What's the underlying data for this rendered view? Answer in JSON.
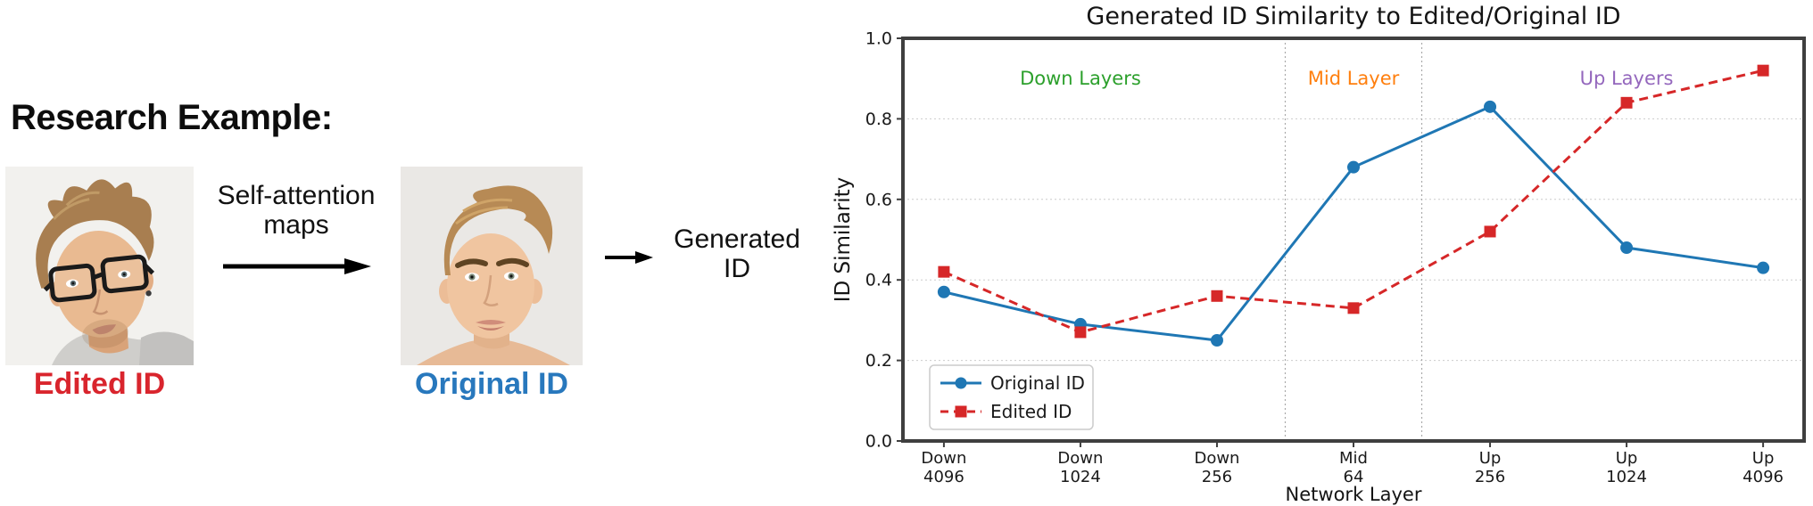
{
  "left_panel": {
    "heading": "Research Example:",
    "images": [
      {
        "label": "Edited ID",
        "label_color": "#d9252d",
        "photo": "man-with-glasses-portrait"
      },
      {
        "label": "Original ID",
        "label_color": "#2878bd",
        "photo": "man-portrait"
      }
    ],
    "arrow1_caption": [
      "Self-attention",
      "maps"
    ],
    "output_caption": [
      "Generated",
      "ID"
    ]
  },
  "chart_data": {
    "type": "line",
    "title": "Generated ID Similarity to Edited/Original ID",
    "xlabel": "Network Layer",
    "ylabel": "ID Similarity",
    "ylim": [
      0.0,
      1.0
    ],
    "yticks": [
      0.0,
      0.2,
      0.4,
      0.6,
      0.8,
      1.0
    ],
    "categories": [
      [
        "Down",
        "4096"
      ],
      [
        "Down",
        "1024"
      ],
      [
        "Down",
        "256"
      ],
      [
        "Mid",
        "64"
      ],
      [
        "Up",
        "256"
      ],
      [
        "Up",
        "1024"
      ],
      [
        "Up",
        "4096"
      ]
    ],
    "series": [
      {
        "name": "Original ID",
        "color": "#1f77b4",
        "style": "solid",
        "marker": "circle",
        "values": [
          0.37,
          0.29,
          0.25,
          0.68,
          0.83,
          0.48,
          0.43
        ]
      },
      {
        "name": "Edited ID",
        "color": "#d62728",
        "style": "dashed",
        "marker": "square",
        "values": [
          0.42,
          0.27,
          0.36,
          0.33,
          0.52,
          0.84,
          0.92
        ]
      }
    ],
    "separators_x": [
      2.5,
      3.5
    ],
    "annotations": [
      {
        "text": "Down Layers",
        "color": "#2ca02c",
        "x": 1,
        "y": 0.9
      },
      {
        "text": "Mid Layer",
        "color": "#ff7f0e",
        "x": 3,
        "y": 0.9
      },
      {
        "text": "Up Layers",
        "color": "#9467bd",
        "x": 5,
        "y": 0.9
      }
    ],
    "legend": {
      "position": "lower left",
      "entries": [
        "Original ID",
        "Edited ID"
      ]
    },
    "grid": true,
    "axis_color": "#3f3f3f",
    "grid_color": "#cccccc",
    "separator_color": "#aaaaaa"
  }
}
